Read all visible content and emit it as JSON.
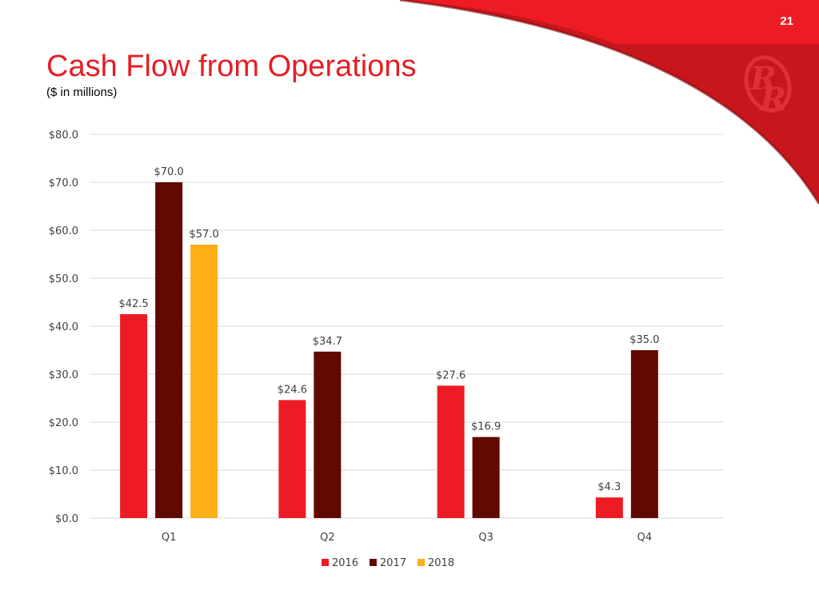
{
  "page_number": "21",
  "colors": {
    "brand_red": "#ed1c24",
    "dark_red": "#c8161d"
  },
  "chart_data": {
    "type": "bar",
    "title": "Cash Flow from Operations",
    "subtitle": "($ in millions)",
    "xlabel": "",
    "ylabel": "",
    "categories": [
      "Q1",
      "Q2",
      "Q3",
      "Q4"
    ],
    "ylim": [
      0,
      80
    ],
    "yticks": [
      "$0.0",
      "$10.0",
      "$20.0",
      "$30.0",
      "$40.0",
      "$50.0",
      "$60.0",
      "$70.0",
      "$80.0"
    ],
    "grid": true,
    "legend": "bottom",
    "series": [
      {
        "name": "2016",
        "color": "#ed1c24",
        "values": [
          42.5,
          24.6,
          27.6,
          4.3
        ],
        "labels": [
          "$42.5",
          "$24.6",
          "$27.6",
          "$4.3"
        ]
      },
      {
        "name": "2017",
        "color": "#600a00",
        "values": [
          70.0,
          34.7,
          16.9,
          35.0
        ],
        "labels": [
          "$70.0",
          "$34.7",
          "$16.9",
          "$35.0"
        ]
      },
      {
        "name": "2018",
        "color": "#fcaf17",
        "values": [
          57.0,
          null,
          null,
          null
        ],
        "labels": [
          "$57.0",
          null,
          null,
          null
        ]
      }
    ]
  }
}
